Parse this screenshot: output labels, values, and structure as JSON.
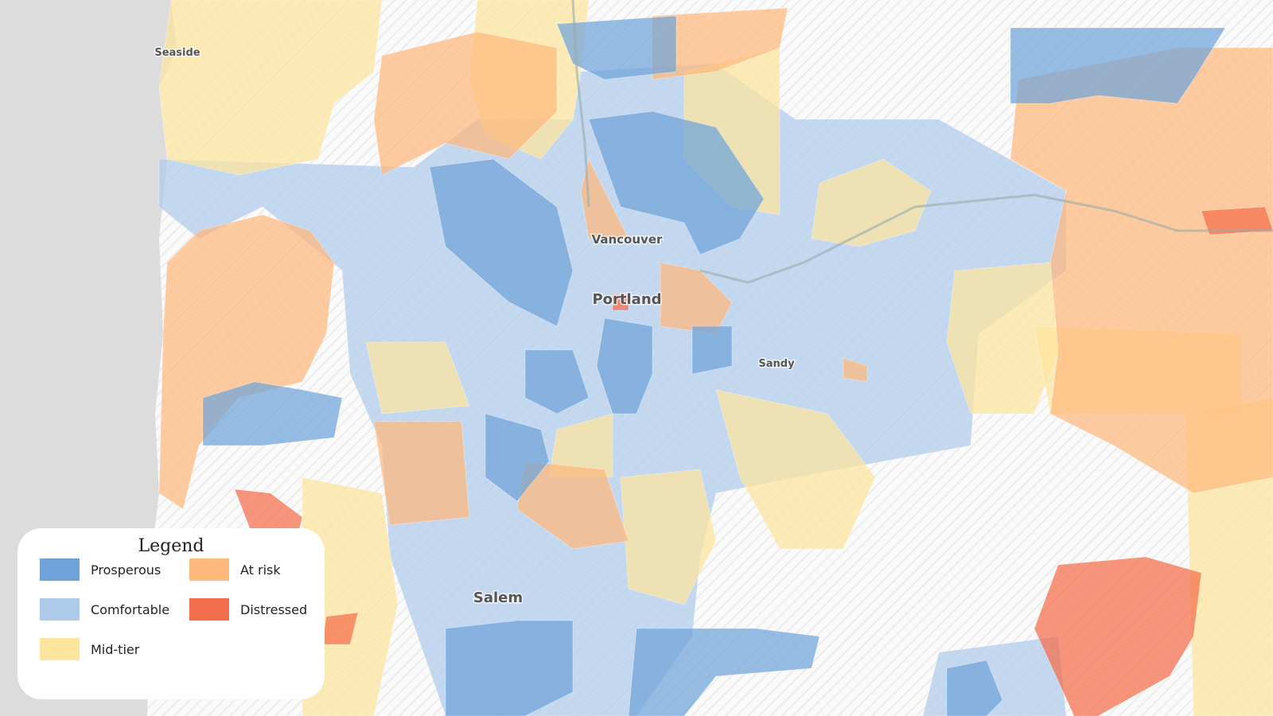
{
  "map": {
    "places": [
      {
        "label": "Seaside",
        "size": 13
      },
      {
        "label": "Vancouver",
        "size": 15
      },
      {
        "label": "Portland",
        "size": 18
      },
      {
        "label": "Sandy",
        "size": 13
      },
      {
        "label": "Salem",
        "size": 18
      }
    ]
  },
  "legend": {
    "title": "Legend",
    "items": [
      {
        "label": "Prosperous",
        "color": "#6fa3da"
      },
      {
        "label": "Comfortable",
        "color": "#aecbeb"
      },
      {
        "label": "Mid-tier",
        "color": "#fde49c"
      },
      {
        "label": "At risk",
        "color": "#fdb97c"
      },
      {
        "label": "Distressed",
        "color": "#f46d4a"
      }
    ]
  }
}
